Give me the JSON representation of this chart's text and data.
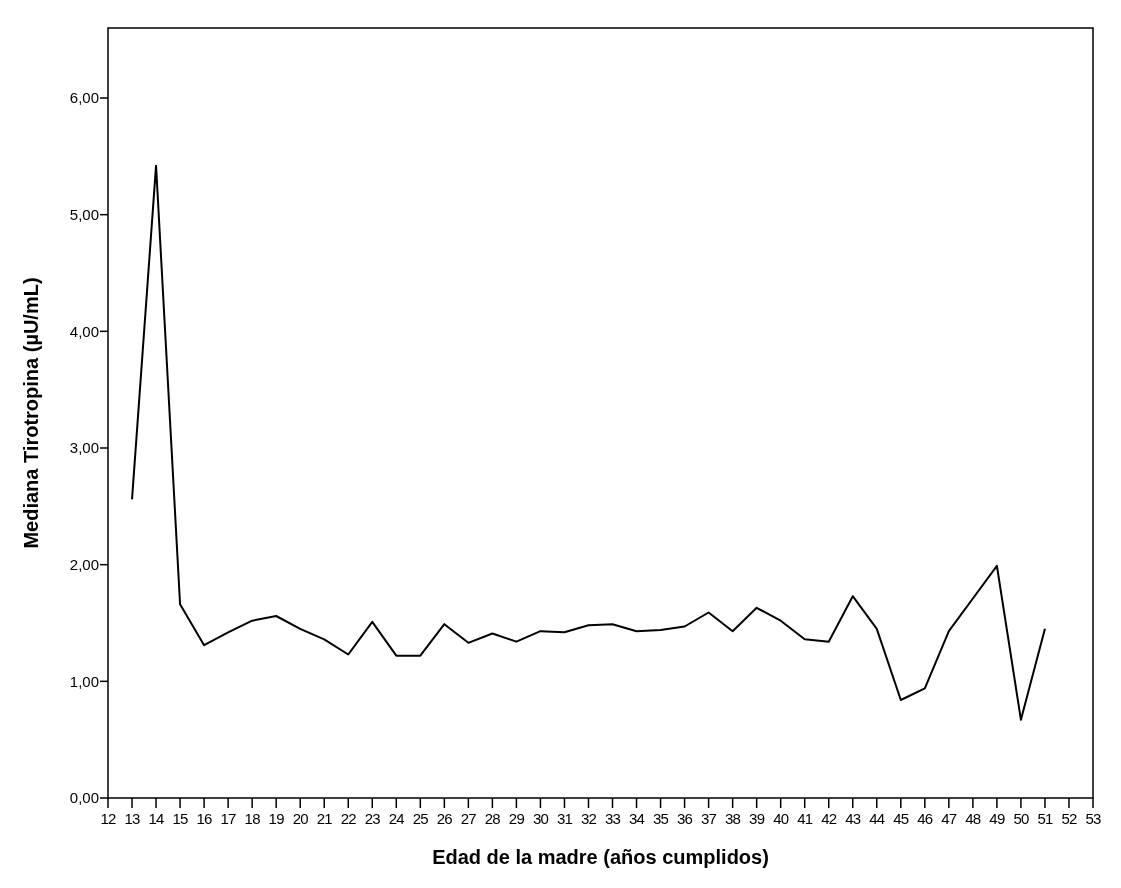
{
  "chart_data": {
    "type": "line",
    "xlabel": "Edad de la madre (años cumplidos)",
    "ylabel": "Mediana Tirotropina (µU/mL)",
    "categories": [
      "12",
      "13",
      "14",
      "15",
      "16",
      "17",
      "18",
      "19",
      "20",
      "21",
      "22",
      "23",
      "24",
      "25",
      "26",
      "27",
      "28",
      "29",
      "30",
      "31",
      "32",
      "33",
      "34",
      "35",
      "36",
      "37",
      "38",
      "39",
      "40",
      "41",
      "42",
      "43",
      "44",
      "45",
      "46",
      "47",
      "48",
      "49",
      "50",
      "51",
      "52",
      "53"
    ],
    "series": [
      {
        "color": "#000000",
        "values": [
          null,
          2.56,
          5.42,
          1.66,
          1.31,
          1.42,
          1.52,
          1.56,
          1.45,
          1.36,
          1.23,
          1.51,
          1.22,
          1.22,
          1.49,
          1.33,
          1.41,
          1.34,
          1.43,
          1.42,
          1.48,
          1.49,
          1.43,
          1.44,
          1.47,
          1.59,
          1.43,
          1.63,
          1.52,
          1.36,
          1.34,
          1.73,
          1.45,
          0.84,
          0.94,
          1.43,
          1.71,
          1.99,
          0.67,
          1.45,
          null,
          null
        ]
      }
    ],
    "ylim": [
      0,
      6.6
    ],
    "yticks": [
      {
        "value": 0,
        "label": "0,00"
      },
      {
        "value": 1,
        "label": "1,00"
      },
      {
        "value": 2,
        "label": "2,00"
      },
      {
        "value": 3,
        "label": "3,00"
      },
      {
        "value": 4,
        "label": "4,00"
      },
      {
        "value": 5,
        "label": "5,00"
      },
      {
        "value": 6,
        "label": "6,00"
      }
    ],
    "marker": "none",
    "line_style": "solid"
  }
}
